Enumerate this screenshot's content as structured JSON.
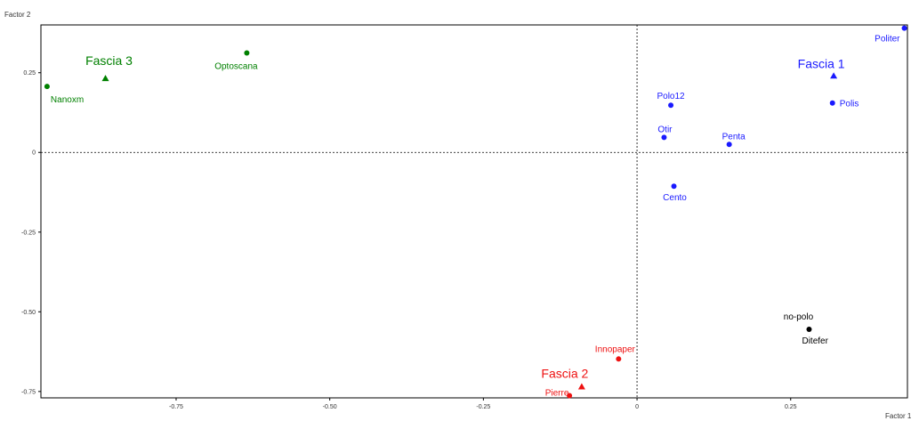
{
  "chart_data": {
    "type": "scatter",
    "xlabel": "Factor 1",
    "ylabel": "Factor 2",
    "xlim": [
      -0.97,
      0.44
    ],
    "ylim": [
      -0.77,
      0.4
    ],
    "x_ticks": [
      -0.75,
      -0.5,
      -0.25,
      0,
      0.25
    ],
    "x_tick_labels": [
      "-0.75",
      "-0.50",
      "-0.25",
      "0",
      "0.25"
    ],
    "y_ticks": [
      0.25,
      0,
      -0.25,
      -0.5,
      -0.75
    ],
    "y_tick_labels": [
      "0.25",
      "0",
      "-0.25",
      "-0.50",
      "-0.75"
    ],
    "grid": false,
    "origin_lines": "dotted",
    "groups": [
      {
        "name": "Fascia 1",
        "color": "#1a1aff",
        "centroid": {
          "x": 0.32,
          "y": 0.24
        },
        "points": [
          {
            "label": "Politer",
            "x": 0.435,
            "y": 0.39
          },
          {
            "label": "Polis",
            "x": 0.318,
            "y": 0.155
          },
          {
            "label": "Polo12",
            "x": 0.055,
            "y": 0.148
          },
          {
            "label": "Otir",
            "x": 0.044,
            "y": 0.047
          },
          {
            "label": "Penta",
            "x": 0.15,
            "y": 0.025
          },
          {
            "label": "Cento",
            "x": 0.06,
            "y": -0.106
          }
        ]
      },
      {
        "name": "Fascia 2",
        "color": "#ee1111",
        "centroid": {
          "x": -0.09,
          "y": -0.735
        },
        "points": [
          {
            "label": "Innopaper",
            "x": -0.03,
            "y": -0.648
          },
          {
            "label": "Pierre",
            "x": -0.11,
            "y": -0.763
          }
        ]
      },
      {
        "name": "Fascia 3",
        "color": "#008000",
        "centroid": {
          "x": -0.865,
          "y": 0.232
        },
        "points": [
          {
            "label": "Nanoxm",
            "x": -0.96,
            "y": 0.207
          },
          {
            "label": "Optoscana",
            "x": -0.635,
            "y": 0.312
          }
        ]
      },
      {
        "name": "",
        "color": "#000000",
        "centroid": null,
        "points": [
          {
            "label": "no-polo",
            "x": 0.28,
            "y": -0.555
          }
        ]
      }
    ],
    "point_labels_extra": [
      {
        "text": "Ditefer",
        "color": "#000000",
        "x": 0.28,
        "y": -0.555
      }
    ]
  }
}
